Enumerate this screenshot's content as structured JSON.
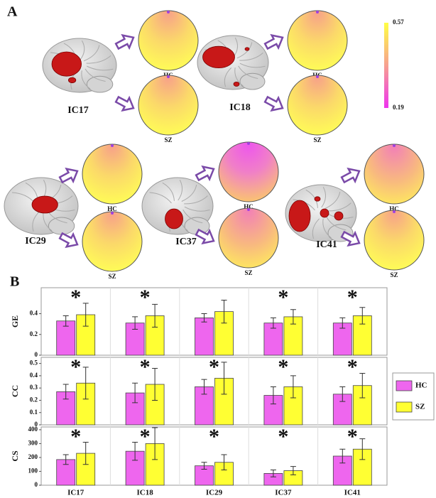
{
  "panel_a": {
    "label": "A",
    "colorbar": {
      "max": 0.57,
      "min": 0.19
    },
    "components": [
      {
        "name": "IC17",
        "labels": [
          "HC",
          "SZ"
        ]
      },
      {
        "name": "IC18",
        "labels": [
          "HC",
          "SZ"
        ]
      },
      {
        "name": "IC29",
        "labels": [
          "HC",
          "SZ"
        ]
      },
      {
        "name": "IC37",
        "labels": [
          "HC",
          "SZ"
        ]
      },
      {
        "name": "IC41",
        "labels": [
          "HC",
          "SZ"
        ]
      }
    ]
  },
  "chart_data": {
    "type": "bar",
    "label": "B",
    "categories": [
      "IC17",
      "IC18",
      "IC29",
      "IC37",
      "IC41"
    ],
    "groups": [
      {
        "name": "HC",
        "color": "#ee66ee"
      },
      {
        "name": "SZ",
        "color": "#ffff33"
      }
    ],
    "panels": [
      {
        "ylabel": "GE",
        "ylim": [
          0,
          0.65
        ],
        "yticks": [
          0,
          0.2,
          0.4
        ],
        "annotations": [
          "*",
          "*",
          null,
          "*",
          "*"
        ],
        "values": [
          [
            0.33,
            0.31,
            0.36,
            0.31,
            0.31
          ],
          [
            0.39,
            0.38,
            0.42,
            0.37,
            0.38
          ]
        ],
        "errors": [
          [
            0.05,
            0.06,
            0.04,
            0.05,
            0.05
          ],
          [
            0.11,
            0.11,
            0.11,
            0.07,
            0.08
          ]
        ]
      },
      {
        "ylabel": "CC",
        "ylim": [
          0,
          0.55
        ],
        "yticks": [
          0,
          0.1,
          0.2,
          0.3,
          0.4,
          0.5
        ],
        "annotations": [
          "*",
          "*",
          "*",
          "*",
          "*"
        ],
        "values": [
          [
            0.27,
            0.26,
            0.31,
            0.24,
            0.25
          ],
          [
            0.34,
            0.33,
            0.38,
            0.31,
            0.32
          ]
        ],
        "errors": [
          [
            0.06,
            0.08,
            0.06,
            0.07,
            0.06
          ],
          [
            0.13,
            0.13,
            0.13,
            0.09,
            0.1
          ]
        ]
      },
      {
        "ylabel": "CS",
        "ylim": [
          0,
          420
        ],
        "yticks": [
          0,
          100,
          200,
          300,
          400
        ],
        "annotations": [
          "*",
          "*",
          "*",
          "*",
          "*"
        ],
        "values": [
          [
            185,
            245,
            140,
            85,
            210
          ],
          [
            230,
            300,
            165,
            105,
            260
          ]
        ],
        "errors": [
          [
            35,
            65,
            25,
            25,
            50
          ],
          [
            80,
            115,
            55,
            30,
            75
          ]
        ]
      }
    ]
  }
}
